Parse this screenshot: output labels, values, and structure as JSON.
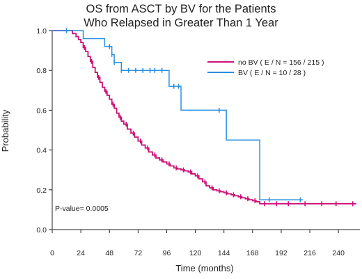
{
  "chart_data": {
    "type": "line",
    "title_lines": [
      "OS from ASCT by BV for the Patients",
      "Who Relapsed in Greater Than 1 Year"
    ],
    "xlabel": "Time (months)",
    "ylabel": "Probability",
    "xlim": [
      0,
      258
    ],
    "ylim": [
      0,
      1.0
    ],
    "xticks": [
      0,
      24,
      48,
      72,
      96,
      120,
      144,
      168,
      192,
      216,
      240
    ],
    "yticks": [
      0.0,
      0.2,
      0.4,
      0.6,
      0.8,
      1.0
    ],
    "ytick_labels": [
      "0.0",
      "0.2",
      "0.4",
      "0.6",
      "0.8",
      "1.0"
    ],
    "grid": false,
    "legend_position": "top-right",
    "annotation": "P-value= 0.0005",
    "series": [
      {
        "name": "no BV  ( E / N = 156 / 215 )",
        "color": "#cc1177",
        "x": [
          0,
          14,
          17,
          20,
          22,
          24,
          26,
          28,
          30,
          32,
          34,
          36,
          38,
          40,
          42,
          44,
          46,
          48,
          50,
          52,
          54,
          56,
          58,
          60,
          63,
          66,
          69,
          72,
          75,
          78,
          81,
          84,
          87,
          90,
          93,
          96,
          99,
          102,
          105,
          108,
          111,
          114,
          117,
          120,
          123,
          126,
          129,
          132,
          135,
          138,
          141,
          144,
          147,
          150,
          153,
          156,
          159,
          162,
          165,
          168,
          171,
          174,
          180,
          190,
          200,
          210,
          220,
          230,
          240,
          255
        ],
        "y": [
          1.0,
          1.0,
          0.985,
          0.97,
          0.955,
          0.94,
          0.915,
          0.895,
          0.87,
          0.845,
          0.815,
          0.79,
          0.765,
          0.74,
          0.715,
          0.695,
          0.675,
          0.655,
          0.63,
          0.61,
          0.585,
          0.565,
          0.545,
          0.53,
          0.505,
          0.485,
          0.465,
          0.445,
          0.425,
          0.41,
          0.39,
          0.375,
          0.36,
          0.35,
          0.34,
          0.33,
          0.32,
          0.31,
          0.305,
          0.3,
          0.295,
          0.29,
          0.28,
          0.27,
          0.255,
          0.24,
          0.22,
          0.21,
          0.2,
          0.195,
          0.19,
          0.185,
          0.18,
          0.175,
          0.17,
          0.165,
          0.16,
          0.155,
          0.15,
          0.145,
          0.14,
          0.13,
          0.13,
          0.13,
          0.13,
          0.13,
          0.13,
          0.13,
          0.13,
          0.13
        ],
        "censor_x": [
          27,
          33,
          39,
          45,
          51,
          57,
          62,
          68,
          74,
          80,
          86,
          92,
          98,
          104,
          110,
          116,
          122,
          128,
          134,
          140,
          146,
          152,
          158,
          164,
          170,
          178,
          188,
          198,
          212,
          226,
          238,
          252
        ]
      },
      {
        "name": "BV  ( E / N = 10 / 28 )",
        "color": "#2a8fe0",
        "x": [
          0,
          12,
          22,
          26,
          38,
          44,
          48,
          50,
          52,
          58,
          64,
          70,
          76,
          82,
          86,
          92,
          96,
          98,
          104,
          108,
          144,
          146,
          160,
          172,
          174,
          210
        ],
        "y": [
          1.0,
          1.0,
          1.0,
          0.96,
          0.96,
          0.92,
          0.92,
          0.88,
          0.84,
          0.8,
          0.8,
          0.8,
          0.8,
          0.8,
          0.8,
          0.8,
          0.8,
          0.72,
          0.72,
          0.6,
          0.6,
          0.45,
          0.45,
          0.45,
          0.15,
          0.15
        ],
        "censor_x": [
          12,
          48,
          50,
          52,
          58,
          64,
          70,
          76,
          82,
          86,
          92,
          102,
          106,
          140,
          182,
          208
        ]
      }
    ]
  }
}
